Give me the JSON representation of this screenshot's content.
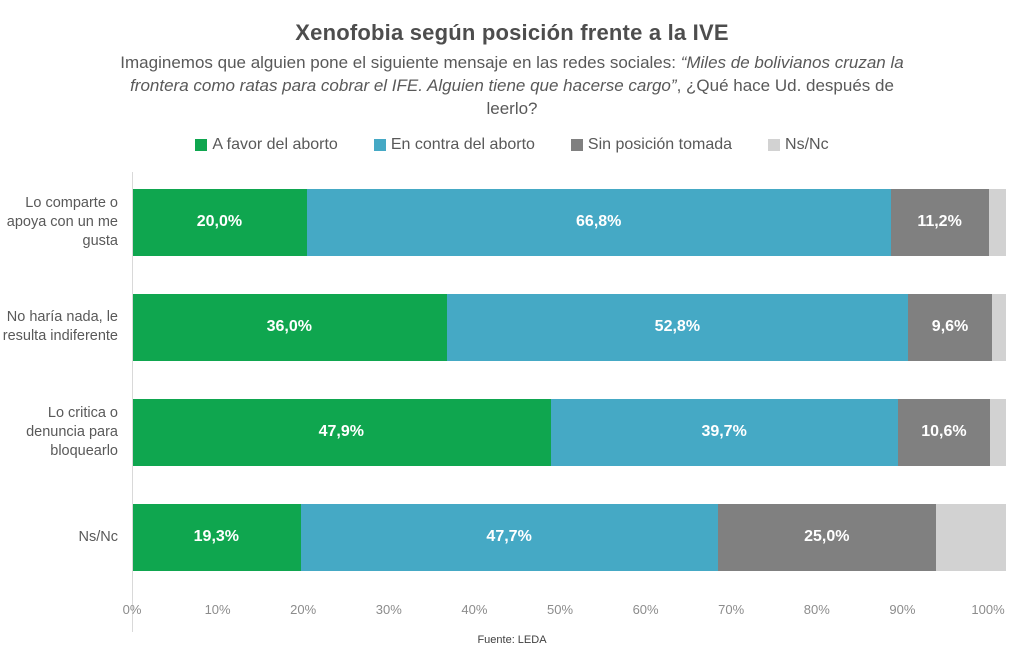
{
  "title": "Xenofobia según posición frente a la IVE",
  "subtitle": {
    "part1": "Imaginemos que alguien pone el siguiente mensaje en las redes sociales: ",
    "part2_italic": "“Miles de bolivianos cruzan la frontera como ratas para cobrar el IFE. Alguien tiene que hacerse cargo”",
    "part3": ", ¿Qué hace Ud. después de leerlo?"
  },
  "footer": {
    "source": "Fuente: LEDA"
  },
  "chart_data": {
    "type": "bar",
    "stacked": true,
    "orientation": "horizontal",
    "title": "Xenofobia según posición frente a la IVE",
    "categories": [
      "Lo comparte o apoya con un me gusta",
      "No haría nada, le resulta indiferente",
      "Lo critica o denuncia para bloquearlo",
      "Ns/Nc"
    ],
    "series": [
      {
        "name": "A favor del aborto",
        "color": "#0FA64F",
        "values": [
          20.0,
          36.0,
          47.9,
          19.3
        ],
        "labels": [
          "20,0%",
          "36,0%",
          "47,9%",
          "19,3%"
        ]
      },
      {
        "name": "En contra del aborto",
        "color": "#45A9C5",
        "values": [
          66.8,
          52.8,
          39.7,
          47.7
        ],
        "labels": [
          "66,8%",
          "52,8%",
          "39,7%",
          "47,7%"
        ]
      },
      {
        "name": "Sin posición tomada",
        "color": "#808080",
        "values": [
          11.2,
          9.6,
          10.6,
          25.0
        ],
        "labels": [
          "11,2%",
          "9,6%",
          "10,6%",
          "25,0%"
        ]
      },
      {
        "name": "Ns/Nc",
        "color": "#D2D2D2",
        "values": [
          2.0,
          1.6,
          1.8,
          8.0
        ],
        "labels": [
          "",
          "",
          "",
          ""
        ]
      }
    ],
    "x_ticks": [
      "0%",
      "10%",
      "20%",
      "30%",
      "40%",
      "50%",
      "60%",
      "70%",
      "80%",
      "90%",
      "100%"
    ],
    "xlim": [
      0,
      100
    ],
    "grid": false,
    "legend_position": "top"
  }
}
